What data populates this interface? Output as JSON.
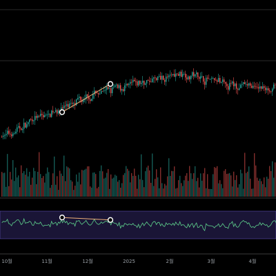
{
  "colors": {
    "background": "#000000",
    "up": "#26a69a",
    "down": "#ef5350",
    "trendline": "#f0b27a",
    "marker": "#ffffff",
    "rsi_line": "#5fd38d",
    "rsi_band": "#1a1536",
    "rsi_border": "#6a5acd",
    "panel_border": "#3a3a3a",
    "grid_line": "#2a2a2a"
  },
  "chart_data": {
    "type": "candlestick",
    "x_ticks": [
      "10월",
      "11월",
      "12월",
      "2025",
      "2월",
      "3월",
      "4월"
    ],
    "price_guide": [
      0.35,
      0.52,
      0.66,
      0.74,
      0.81,
      0.72,
      0.7
    ],
    "price_ylim": [
      0,
      1
    ],
    "volume_ylim": [
      0,
      1
    ],
    "rsi_ylim": [
      0,
      100
    ],
    "rsi_band": [
      30,
      70
    ],
    "price_trendline": {
      "from_index": 44,
      "to_index": 79
    },
    "rsi_trendline": {
      "from_index": 44,
      "to_index": 79
    },
    "candle_count": 200,
    "grid": false,
    "legend": "none"
  }
}
